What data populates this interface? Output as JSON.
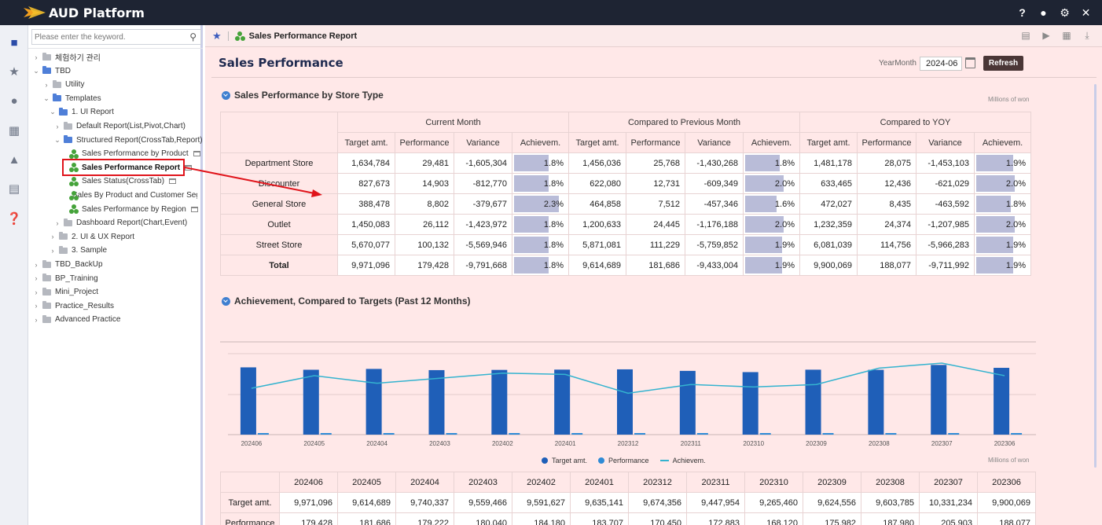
{
  "app": {
    "title": "AUD Platform"
  },
  "topbar_icons": [
    "help-icon",
    "user-icon",
    "settings-icon",
    "close-icon"
  ],
  "rail": [
    "folder-icon",
    "star-icon",
    "person-icon",
    "dashboard-icon",
    "alarm-icon",
    "document-icon",
    "help-circle-icon"
  ],
  "search": {
    "placeholder": "Please enter the keyword."
  },
  "tree": [
    {
      "label": "체험하기 관리",
      "level": 0,
      "type": "folder-gray",
      "chev": "›"
    },
    {
      "label": "TBD",
      "level": 0,
      "type": "folder-blue",
      "chev": "⌄"
    },
    {
      "label": "Utility",
      "level": 1,
      "type": "folder-gray",
      "chev": "›"
    },
    {
      "label": "Templates",
      "level": 1,
      "type": "folder-blue",
      "chev": "⌄"
    },
    {
      "label": "1. UI Report",
      "level": 2,
      "type": "folder-blue",
      "chev": "⌄"
    },
    {
      "label": "Default Report(List,Pivot,Chart)",
      "level": 3,
      "type": "folder-gray",
      "chev": "›"
    },
    {
      "label": "Structured Report(CrossTab,Report)",
      "level": 3,
      "type": "folder-blue",
      "chev": "⌄"
    },
    {
      "label": "Sales Performance by Product",
      "level": 4,
      "type": "report",
      "chev": ""
    },
    {
      "label": "Sales Performance Report",
      "level": 4,
      "type": "report",
      "chev": "",
      "selected": true
    },
    {
      "label": "Sales Status(CrossTab)",
      "level": 4,
      "type": "report",
      "chev": ""
    },
    {
      "label": "Sales By Product and Customer Segment",
      "level": 4,
      "type": "report",
      "chev": ""
    },
    {
      "label": "Sales Performance by Region",
      "level": 4,
      "type": "report",
      "chev": ""
    },
    {
      "label": "Dashboard Report(Chart,Event)",
      "level": 3,
      "type": "folder-gray",
      "chev": "›"
    },
    {
      "label": "2. UI & UX Report",
      "level": 2,
      "type": "folder-gray",
      "chev": "›"
    },
    {
      "label": "3. Sample",
      "level": 2,
      "type": "folder-gray",
      "chev": "›"
    },
    {
      "label": "TBD_BackUp",
      "level": 0,
      "type": "folder-gray",
      "chev": "›"
    },
    {
      "label": "BP_Training",
      "level": 0,
      "type": "folder-gray",
      "chev": "›"
    },
    {
      "label": "Mini_Project",
      "level": 0,
      "type": "folder-gray",
      "chev": "›"
    },
    {
      "label": "Practice_Results",
      "level": 0,
      "type": "folder-gray",
      "chev": "›"
    },
    {
      "label": "Advanced Practice",
      "level": 0,
      "type": "folder-gray",
      "chev": "›"
    }
  ],
  "report": {
    "tab_title": "Sales Performance Report",
    "page_title": "Sales Performance",
    "yearmonth_label": "YearMonth",
    "yearmonth_value": "2024-06",
    "refresh_label": "Refresh",
    "tool_icons": [
      "document-icon",
      "play-icon",
      "save-icon",
      "download-icon"
    ]
  },
  "section1": {
    "title": "Sales Performance by Store Type",
    "unit": "Millions of won",
    "groups": [
      "Current Month",
      "Compared to Previous Month",
      "Compared to YOY"
    ],
    "sub_headers": [
      "Target amt.",
      "Performance",
      "Variance",
      "Achievem."
    ],
    "rows": [
      {
        "label": "Department Store",
        "cells": [
          "1,634,784",
          "29,481",
          "-1,605,304",
          "1.8%",
          "1,456,036",
          "25,768",
          "-1,430,268",
          "1.8%",
          "1,481,178",
          "28,075",
          "-1,453,103",
          "1.9%"
        ],
        "ach": [
          1.8,
          1.8,
          1.9
        ]
      },
      {
        "label": "Discounter",
        "cells": [
          "827,673",
          "14,903",
          "-812,770",
          "1.8%",
          "622,080",
          "12,731",
          "-609,349",
          "2.0%",
          "633,465",
          "12,436",
          "-621,029",
          "2.0%"
        ],
        "ach": [
          1.8,
          2.0,
          2.0
        ]
      },
      {
        "label": "General Store",
        "cells": [
          "388,478",
          "8,802",
          "-379,677",
          "2.3%",
          "464,858",
          "7,512",
          "-457,346",
          "1.6%",
          "472,027",
          "8,435",
          "-463,592",
          "1.8%"
        ],
        "ach": [
          2.3,
          1.6,
          1.8
        ]
      },
      {
        "label": "Outlet",
        "cells": [
          "1,450,083",
          "26,112",
          "-1,423,972",
          "1.8%",
          "1,200,633",
          "24,445",
          "-1,176,188",
          "2.0%",
          "1,232,359",
          "24,374",
          "-1,207,985",
          "2.0%"
        ],
        "ach": [
          1.8,
          2.0,
          2.0
        ]
      },
      {
        "label": "Street Store",
        "cells": [
          "5,670,077",
          "100,132",
          "-5,569,946",
          "1.8%",
          "5,871,081",
          "111,229",
          "-5,759,852",
          "1.9%",
          "6,081,039",
          "114,756",
          "-5,966,283",
          "1.9%"
        ],
        "ach": [
          1.8,
          1.9,
          1.9
        ]
      },
      {
        "label": "Total",
        "cells": [
          "9,971,096",
          "179,428",
          "-9,791,668",
          "1.8%",
          "9,614,689",
          "181,686",
          "-9,433,004",
          "1.9%",
          "9,900,069",
          "188,077",
          "-9,711,992",
          "1.9%"
        ],
        "ach": [
          1.8,
          1.9,
          1.9
        ],
        "total": true
      }
    ]
  },
  "section2": {
    "title": "Achievement, Compared to Targets (Past 12 Months)",
    "unit": "Millions of won"
  },
  "chart_data": {
    "type": "bar",
    "categories": [
      "202406",
      "202405",
      "202404",
      "202403",
      "202402",
      "202401",
      "202312",
      "202311",
      "202310",
      "202309",
      "202308",
      "202307",
      "202306"
    ],
    "series": [
      {
        "name": "Target amt.",
        "kind": "bar",
        "color": "#1f5fb8",
        "values": [
          9971096,
          9614689,
          9740337,
          9559466,
          9591627,
          9635141,
          9674356,
          9447954,
          9265460,
          9624556,
          9603785,
          10331234,
          9900069
        ]
      },
      {
        "name": "Performance",
        "kind": "bar",
        "color": "#2f8bd6",
        "values": [
          179428,
          181686,
          179222,
          180040,
          184180,
          183707,
          170450,
          172883,
          168120,
          175982,
          187980,
          205903,
          188077
        ]
      },
      {
        "name": "Achievem.",
        "kind": "line",
        "color": "#34b3cf",
        "values": [
          1.8,
          1.9,
          1.84,
          1.88,
          1.92,
          1.91,
          1.76,
          1.83,
          1.81,
          1.83,
          1.96,
          2.0,
          1.9
        ]
      }
    ],
    "legend_position": "bottom"
  },
  "table2": {
    "row_labels": [
      "Target amt.",
      "Performance"
    ],
    "target_cells": [
      "9,971,096",
      "9,614,689",
      "9,740,337",
      "9,559,466",
      "9,591,627",
      "9,635,141",
      "9,674,356",
      "9,447,954",
      "9,265,460",
      "9,624,556",
      "9,603,785",
      "10,331,234",
      "9,900,069"
    ],
    "performance_cells": [
      "179,428",
      "181,686",
      "179,222",
      "180,040",
      "184,180",
      "183,707",
      "170,450",
      "172,883",
      "168,120",
      "175,982",
      "187,980",
      "205,903",
      "188,077"
    ]
  }
}
